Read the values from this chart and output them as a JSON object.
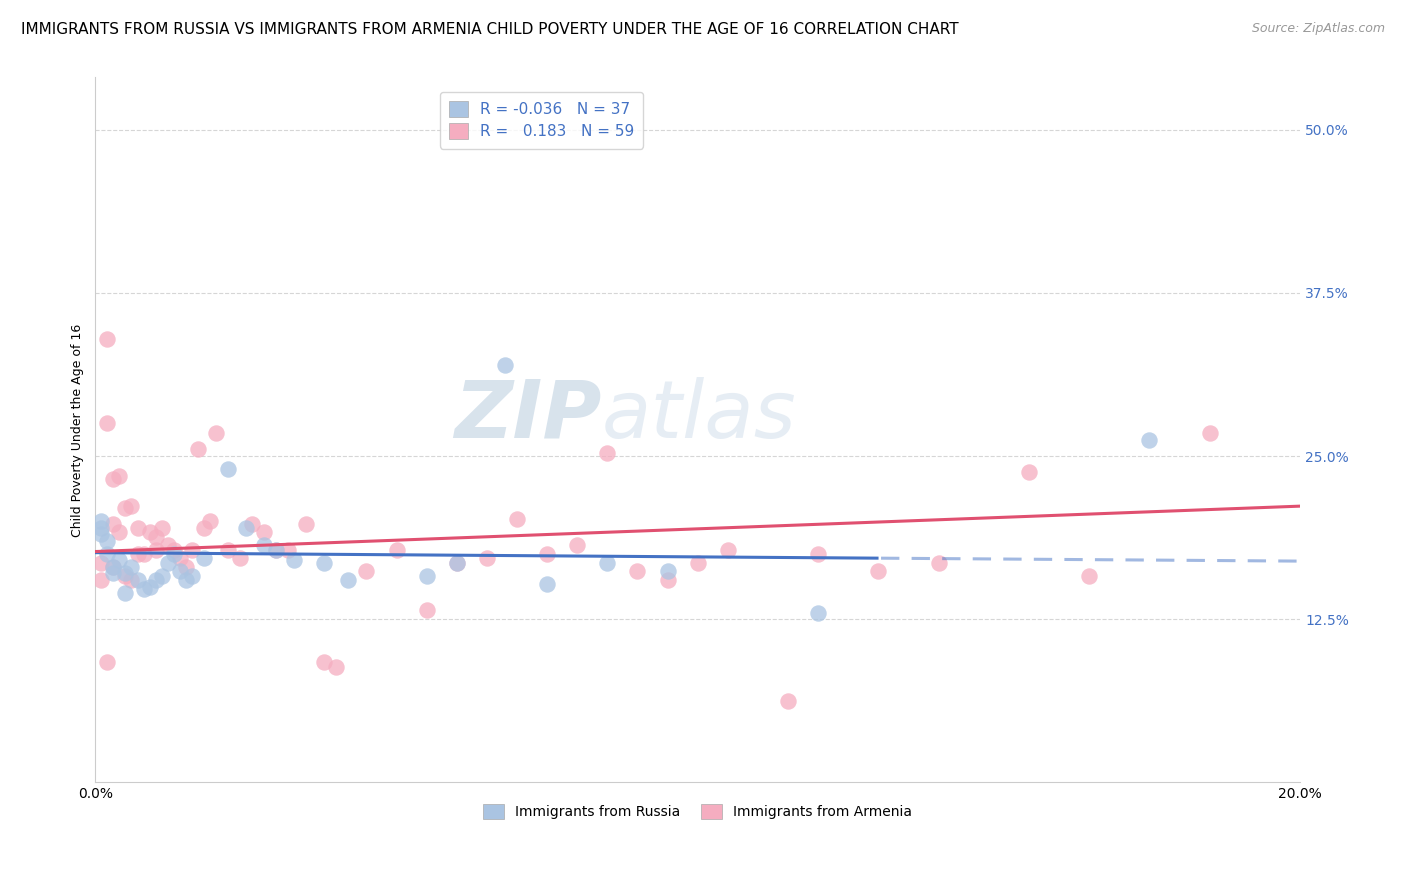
{
  "title": "IMMIGRANTS FROM RUSSIA VS IMMIGRANTS FROM ARMENIA CHILD POVERTY UNDER THE AGE OF 16 CORRELATION CHART",
  "source": "Source: ZipAtlas.com",
  "ylabel": "Child Poverty Under the Age of 16",
  "ytick_labels": [
    "50.0%",
    "37.5%",
    "25.0%",
    "12.5%"
  ],
  "ytick_values": [
    0.5,
    0.375,
    0.25,
    0.125
  ],
  "xlim": [
    0.0,
    0.2
  ],
  "ylim": [
    0.0,
    0.54
  ],
  "russia_R": -0.036,
  "russia_N": 37,
  "armenia_R": 0.183,
  "armenia_N": 59,
  "russia_color": "#aac4e2",
  "armenia_color": "#f5adc0",
  "russia_line_color": "#4472c4",
  "armenia_line_color": "#e05070",
  "russia_line_dash_color": "#b0c0d8",
  "background_color": "#ffffff",
  "grid_color": "#cccccc",
  "russia_x": [
    0.001,
    0.001,
    0.001,
    0.002,
    0.002,
    0.003,
    0.003,
    0.004,
    0.005,
    0.005,
    0.006,
    0.007,
    0.008,
    0.009,
    0.01,
    0.011,
    0.012,
    0.013,
    0.014,
    0.015,
    0.016,
    0.018,
    0.022,
    0.025,
    0.028,
    0.03,
    0.033,
    0.038,
    0.042,
    0.055,
    0.06,
    0.068,
    0.075,
    0.085,
    0.095,
    0.12,
    0.175
  ],
  "russia_y": [
    0.19,
    0.195,
    0.2,
    0.175,
    0.185,
    0.16,
    0.165,
    0.17,
    0.145,
    0.16,
    0.165,
    0.155,
    0.148,
    0.15,
    0.155,
    0.158,
    0.168,
    0.175,
    0.162,
    0.155,
    0.158,
    0.172,
    0.24,
    0.195,
    0.182,
    0.178,
    0.17,
    0.168,
    0.155,
    0.158,
    0.168,
    0.32,
    0.152,
    0.168,
    0.162,
    0.13,
    0.262
  ],
  "armenia_x": [
    0.001,
    0.001,
    0.002,
    0.002,
    0.002,
    0.003,
    0.003,
    0.003,
    0.004,
    0.004,
    0.005,
    0.005,
    0.006,
    0.006,
    0.007,
    0.007,
    0.008,
    0.009,
    0.01,
    0.01,
    0.011,
    0.012,
    0.013,
    0.014,
    0.015,
    0.016,
    0.017,
    0.018,
    0.019,
    0.02,
    0.022,
    0.024,
    0.026,
    0.028,
    0.03,
    0.032,
    0.035,
    0.038,
    0.04,
    0.045,
    0.05,
    0.055,
    0.06,
    0.065,
    0.07,
    0.075,
    0.08,
    0.085,
    0.09,
    0.095,
    0.1,
    0.105,
    0.115,
    0.12,
    0.13,
    0.14,
    0.155,
    0.165,
    0.185
  ],
  "armenia_y": [
    0.155,
    0.168,
    0.092,
    0.275,
    0.34,
    0.198,
    0.232,
    0.165,
    0.192,
    0.235,
    0.158,
    0.21,
    0.155,
    0.212,
    0.175,
    0.195,
    0.175,
    0.192,
    0.178,
    0.188,
    0.195,
    0.182,
    0.178,
    0.172,
    0.165,
    0.178,
    0.255,
    0.195,
    0.2,
    0.268,
    0.178,
    0.172,
    0.198,
    0.192,
    0.178,
    0.178,
    0.198,
    0.092,
    0.088,
    0.162,
    0.178,
    0.132,
    0.168,
    0.172,
    0.202,
    0.175,
    0.182,
    0.252,
    0.162,
    0.155,
    0.168,
    0.178,
    0.062,
    0.175,
    0.162,
    0.168,
    0.238,
    0.158,
    0.268
  ],
  "watermark_zip": "ZIP",
  "watermark_atlas": "atlas",
  "title_fontsize": 11,
  "axis_label_fontsize": 9,
  "tick_fontsize": 10
}
